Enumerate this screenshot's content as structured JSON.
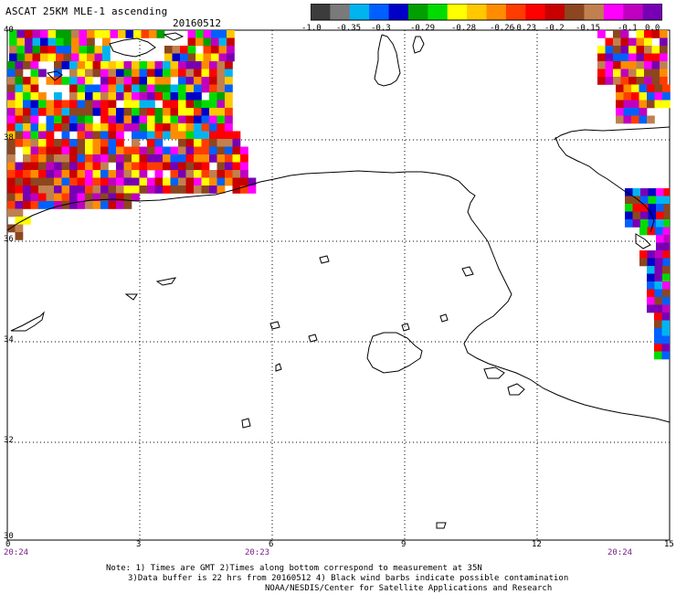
{
  "header": {
    "title": "ASCAT 25KM MLE-1 ascending",
    "date": "20160512"
  },
  "colorbar": {
    "colors": [
      "#3c3c3c",
      "#7a7a7a",
      "#00b4f0",
      "#0060ff",
      "#0000c8",
      "#00a000",
      "#00dc00",
      "#ffff00",
      "#ffc800",
      "#ff8c00",
      "#ff3c00",
      "#ff0000",
      "#c80000",
      "#8c4620",
      "#c08050",
      "#ff00ff",
      "#c000c0",
      "#7800b4"
    ],
    "labels": [
      "-1.0",
      "-0.35",
      "-0.3",
      "-0.29",
      "-0.28",
      "-0.26",
      "-0.23",
      "-0.2",
      "-0.15",
      "-0.1",
      "0.0"
    ]
  },
  "axes": {
    "y_labels": [
      "40",
      "38",
      "36",
      "34",
      "32",
      "30"
    ],
    "x_labels": [
      "0",
      "3",
      "6",
      "9",
      "12",
      "15"
    ]
  },
  "times": [
    "20:24",
    "20:23",
    "20:24"
  ],
  "notes": {
    "line1": "Note: 1) Times are GMT 2)Times along bottom correspond to measurement at 35N",
    "line2": "3)Data buffer is 22 hrs from 20160512 4) Black wind barbs indicate possible contamination",
    "line3": "NOAA/NESDIS/Center for Satellite Applications and Research"
  }
}
